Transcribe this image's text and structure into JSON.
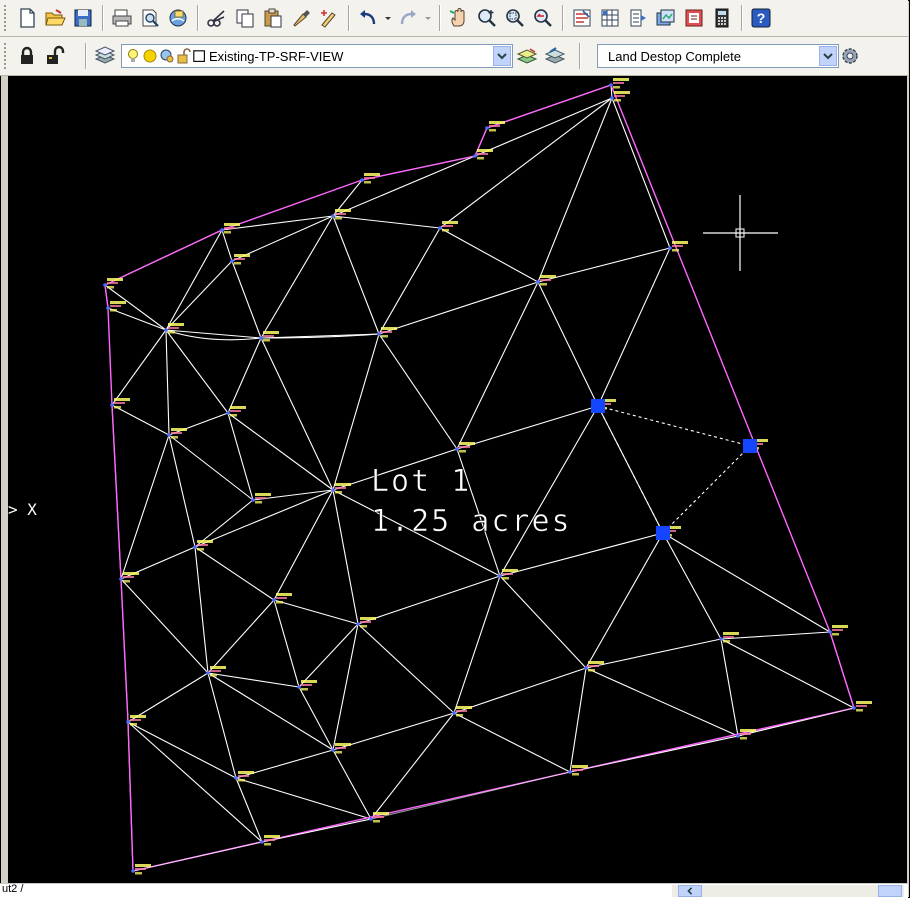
{
  "toolbar_standard": {
    "buttons": [
      {
        "name": "new-icon"
      },
      {
        "name": "open-icon"
      },
      {
        "name": "save-icon"
      },
      {
        "name": "plot-icon"
      },
      {
        "name": "plot-preview-icon"
      },
      {
        "name": "publish-icon"
      },
      {
        "name": "cut-icon"
      },
      {
        "name": "copy-icon"
      },
      {
        "name": "paste-icon"
      },
      {
        "name": "match-properties-icon"
      },
      {
        "name": "block-editor-icon"
      },
      {
        "name": "undo-icon"
      },
      {
        "name": "redo-icon"
      },
      {
        "name": "pan-icon"
      },
      {
        "name": "zoom-realtime-icon"
      },
      {
        "name": "zoom-window-icon"
      },
      {
        "name": "zoom-previous-icon"
      },
      {
        "name": "properties-icon"
      },
      {
        "name": "design-center-icon"
      },
      {
        "name": "tool-palettes-icon"
      },
      {
        "name": "sheet-set-icon"
      },
      {
        "name": "markup-icon"
      },
      {
        "name": "calculator-icon"
      },
      {
        "name": "help-icon"
      }
    ]
  },
  "toolbar_layers": {
    "layer_name": "Existing-TP-SRF-VIEW",
    "workspace": "Land Destop Complete"
  },
  "drawing": {
    "lot_label": "Lot 1",
    "area_label": "1.25 acres",
    "cmd_prefix": "> X"
  },
  "status": {
    "layout_tab": "ut2 /"
  },
  "colors": {
    "canvas_bg": "#000000",
    "tin_lines": "#ffffff",
    "boundary": "#ff66ff",
    "point_marker": "#4d6bff",
    "point_label": "#ffff66",
    "grip": "#1446ff"
  }
}
